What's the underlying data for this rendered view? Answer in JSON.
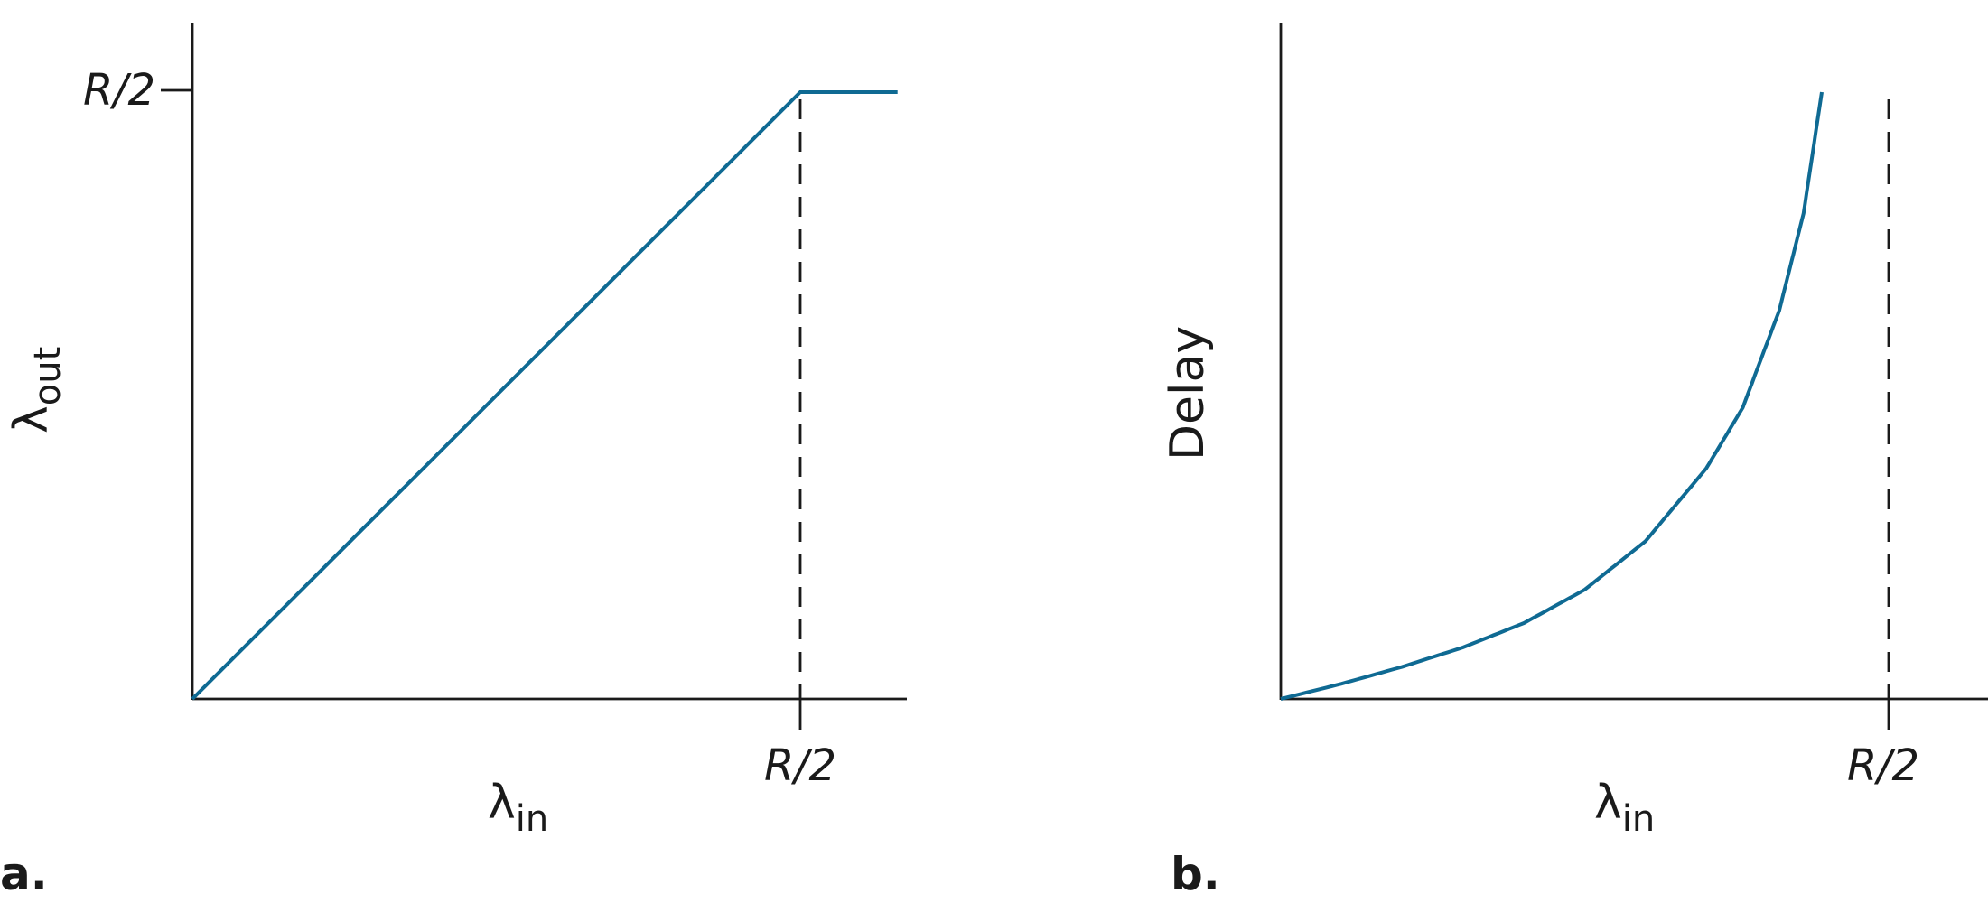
{
  "panels": {
    "a": {
      "label": "a."
    },
    "b": {
      "label": "b."
    }
  },
  "colors": {
    "curve": "#0f6a93",
    "axis": "#1a1a1a"
  },
  "chart_data": [
    {
      "type": "line",
      "panel": "a.",
      "ylabel": "λ",
      "ylabel_sub": "out",
      "xlabel": "λ",
      "xlabel_sub": "in",
      "x_tick_label": "R/2",
      "y_tick_label": "R/2",
      "xlim": [
        0,
        0.59
      ],
      "ylim": [
        0,
        0.55
      ],
      "reference_line_x": 0.5,
      "series": [
        {
          "x": [
            0,
            0.5,
            0.58
          ],
          "y": [
            0,
            0.5,
            0.5
          ]
        }
      ]
    },
    {
      "type": "line",
      "panel": "b.",
      "ylabel": "Delay",
      "xlabel": "λ",
      "xlabel_sub": "in",
      "x_tick_label": "R/2",
      "xlim": [
        0,
        0.58
      ],
      "ylim": [
        0,
        1
      ],
      "reference_line_x": 0.5,
      "series": [
        {
          "x": [
            0,
            0.05,
            0.1,
            0.15,
            0.2,
            0.25,
            0.3,
            0.35,
            0.38,
            0.41,
            0.43,
            0.445
          ],
          "y": [
            0,
            0.025,
            0.053,
            0.085,
            0.125,
            0.18,
            0.26,
            0.38,
            0.48,
            0.64,
            0.8,
            1.0
          ]
        }
      ]
    }
  ]
}
